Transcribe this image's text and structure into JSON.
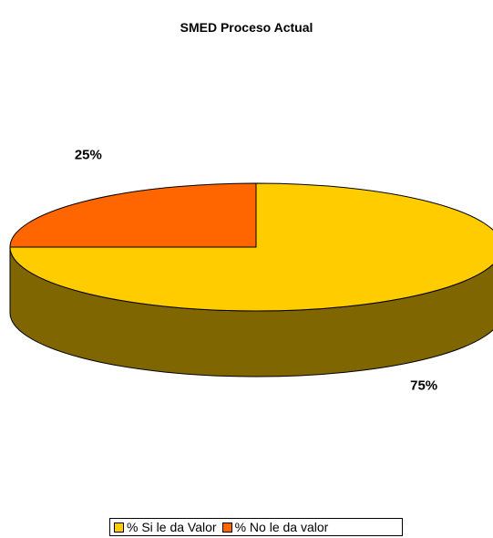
{
  "chart_data": {
    "type": "pie",
    "title": "SMED Proceso Actual",
    "categories": [
      "% Si le da Valor",
      "% No le da valor"
    ],
    "values": [
      75,
      25
    ],
    "value_labels": [
      "75%",
      "25%"
    ],
    "colors": [
      "#FFCC00",
      "#FF6600"
    ],
    "side_color": "#806600",
    "legend_position": "bottom",
    "3d": true
  }
}
